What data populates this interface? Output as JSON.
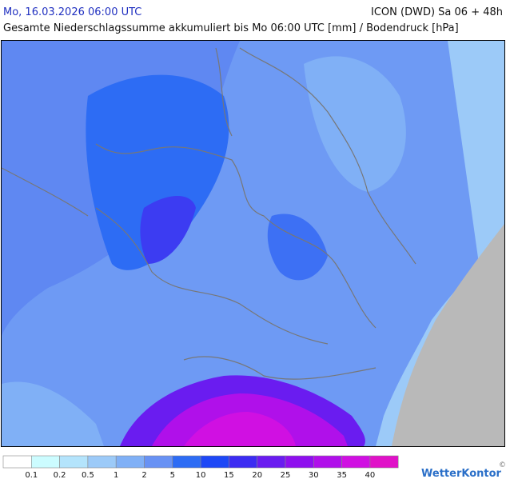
{
  "header": {
    "date": "Mo, 16.03.2026 06:00 UTC",
    "model": "ICON (DWD) Sa 06 + 48h",
    "subtitle": "Gesamte Niederschlagssumme akkumuliert bis Mo 06:00 UTC [mm] / Bodendruck [hPa]"
  },
  "legend": {
    "levels": [
      0.1,
      0.2,
      0.5,
      1,
      2,
      5,
      10,
      15,
      20,
      25,
      30,
      35,
      40
    ],
    "colors": [
      "#ffffff",
      "#ccfcff",
      "#b4e4fc",
      "#9ccaf8",
      "#80b0f6",
      "#6892f4",
      "#2d6cf4",
      "#1e48f6",
      "#3c2cf2",
      "#6a1cf0",
      "#8e10ee",
      "#b010ea",
      "#d010e2",
      "#e012c8"
    ]
  },
  "brand": "WetterKontor",
  "copyright": "©"
}
